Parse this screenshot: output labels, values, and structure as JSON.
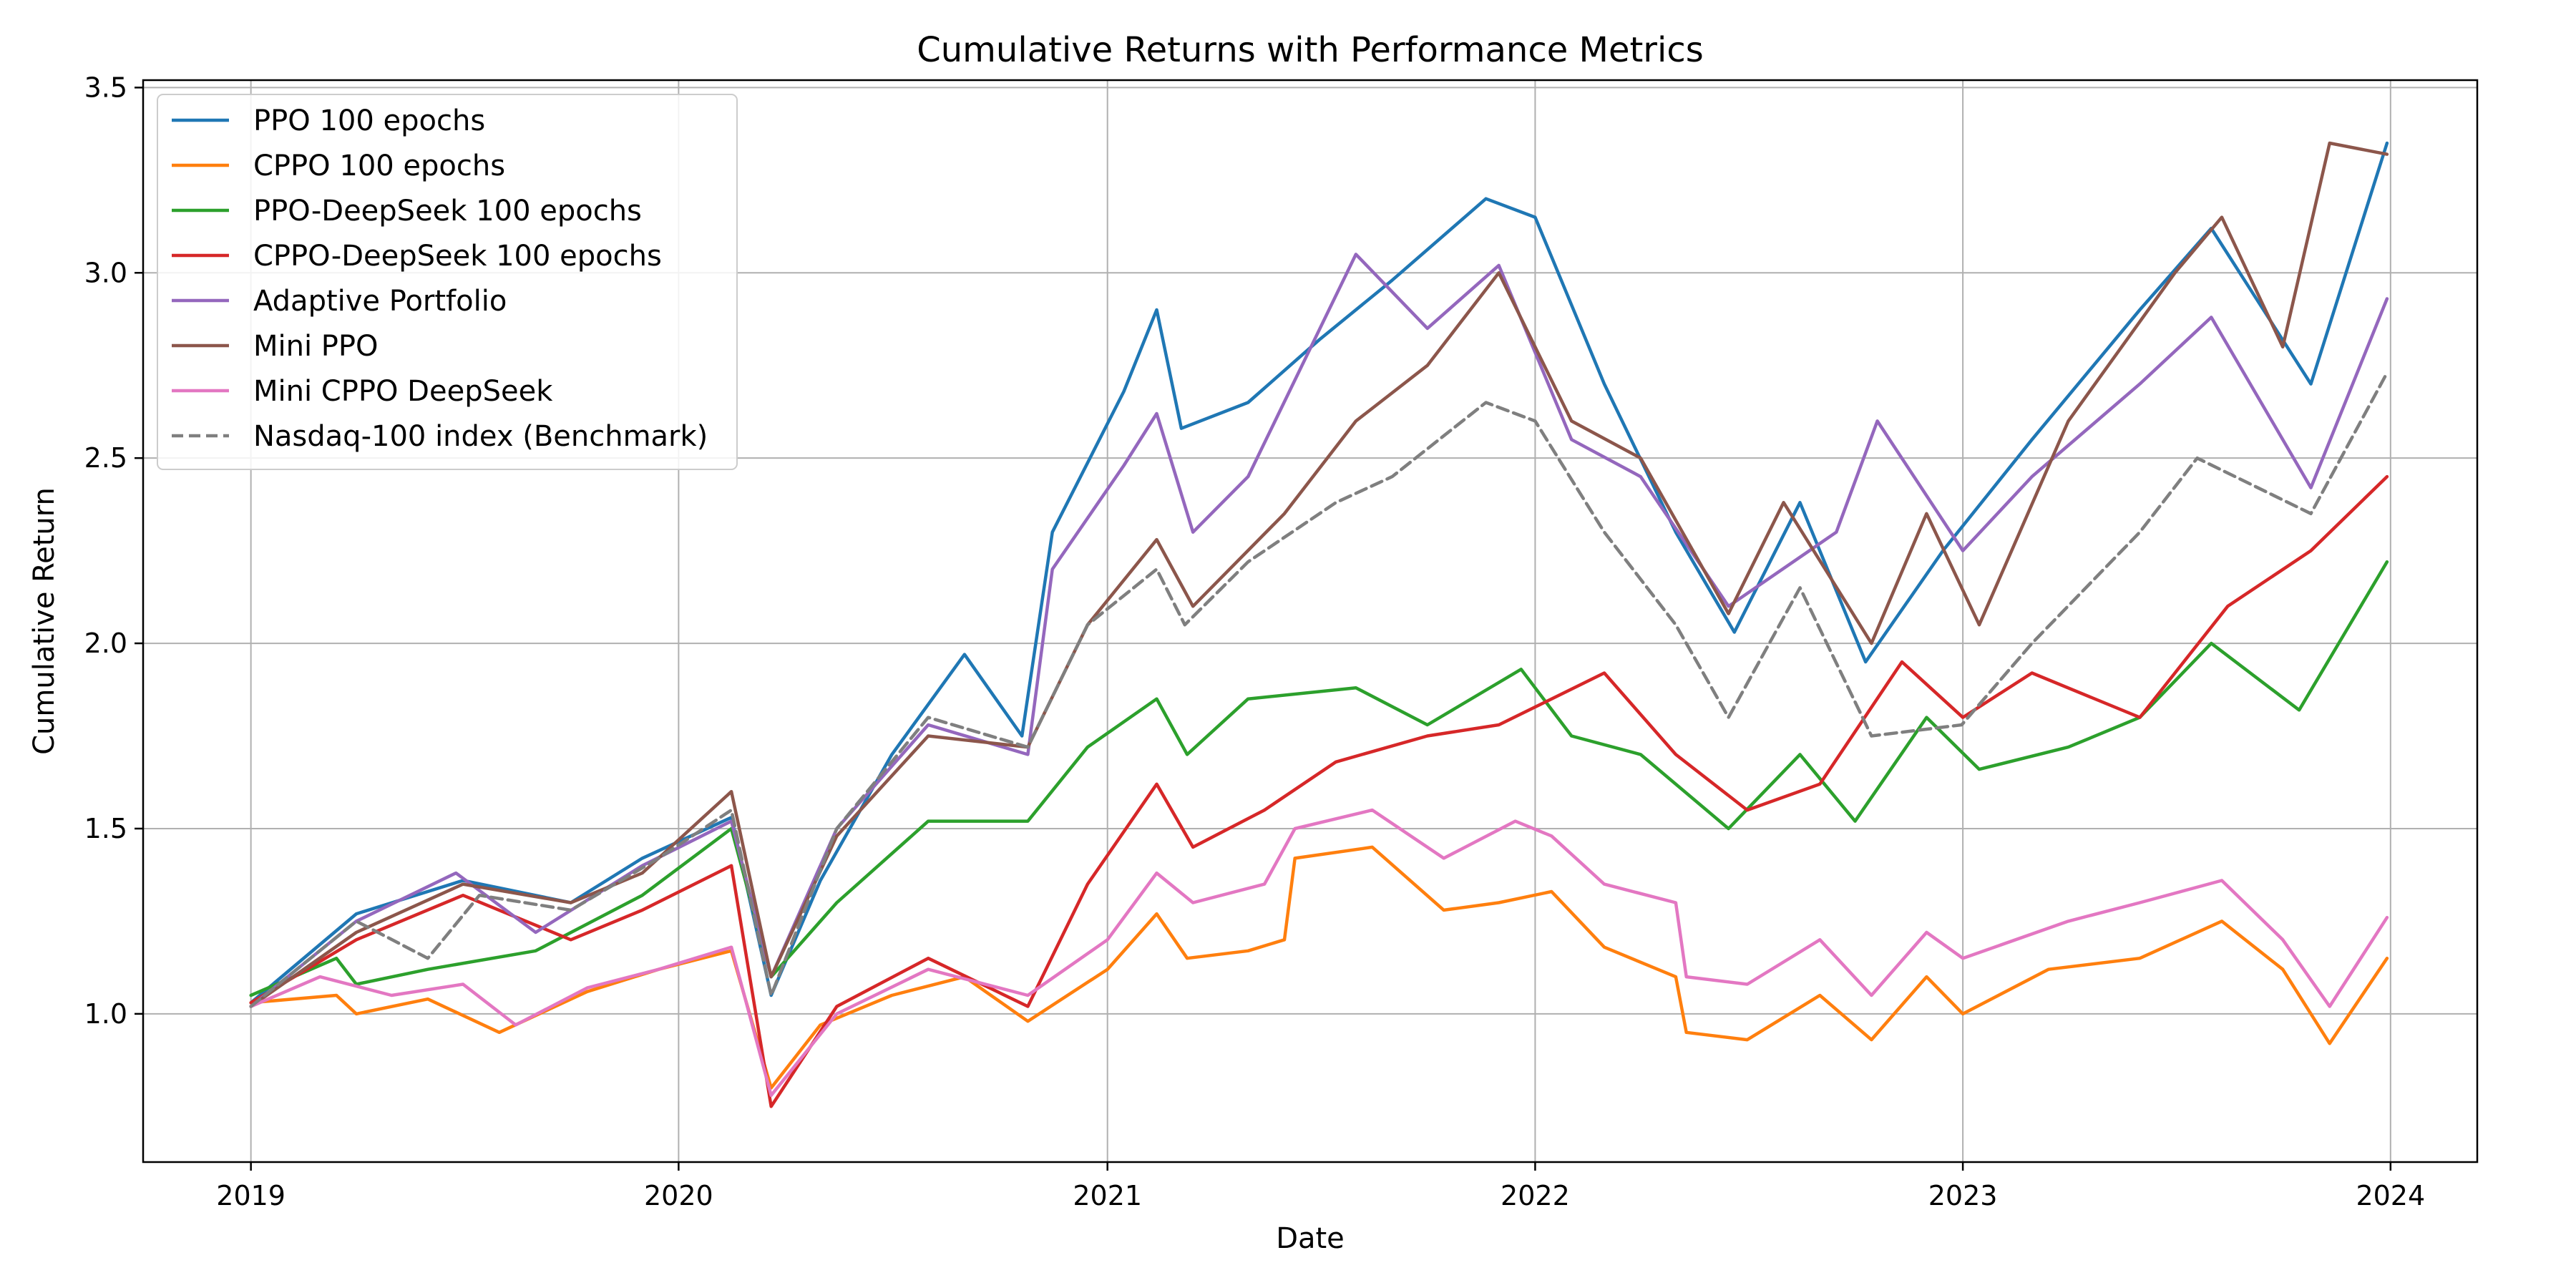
{
  "chart_data": {
    "type": "line",
    "title": "Cumulative Returns with Performance Metrics",
    "xlabel": "Date",
    "ylabel": "Cumulative Return",
    "xlim": [
      "2018-10-01",
      "2024-03-15"
    ],
    "ylim": [
      0.6,
      3.52
    ],
    "x_ticks": [
      "2019-01-01",
      "2020-01-01",
      "2021-01-01",
      "2022-01-01",
      "2023-01-01",
      "2024-01-01"
    ],
    "x_tick_labels": [
      "2019",
      "2020",
      "2021",
      "2022",
      "2023",
      "2024"
    ],
    "y_ticks": [
      1.0,
      1.5,
      2.0,
      2.5,
      3.0,
      3.5
    ],
    "y_tick_labels": [
      "1.0",
      "1.5",
      "2.0",
      "2.5",
      "3.0",
      "3.5"
    ],
    "grid": true,
    "legend_position": "top-left",
    "series": [
      {
        "name": "PPO 100 epochs",
        "color": "#1f77b4",
        "dash": "solid",
        "points": [
          [
            "2019-01-01",
            1.03
          ],
          [
            "2019-04-01",
            1.27
          ],
          [
            "2019-07-01",
            1.36
          ],
          [
            "2019-10-01",
            1.3
          ],
          [
            "2019-12-01",
            1.42
          ],
          [
            "2020-02-15",
            1.53
          ],
          [
            "2020-03-20",
            1.05
          ],
          [
            "2020-05-01",
            1.36
          ],
          [
            "2020-07-01",
            1.7
          ],
          [
            "2020-09-01",
            1.97
          ],
          [
            "2020-10-20",
            1.75
          ],
          [
            "2020-11-15",
            2.3
          ],
          [
            "2021-01-15",
            2.68
          ],
          [
            "2021-02-12",
            2.9
          ],
          [
            "2021-03-05",
            2.58
          ],
          [
            "2021-05-01",
            2.65
          ],
          [
            "2021-07-01",
            2.82
          ],
          [
            "2021-09-01",
            2.98
          ],
          [
            "2021-11-20",
            3.2
          ],
          [
            "2022-01-01",
            3.15
          ],
          [
            "2022-03-01",
            2.7
          ],
          [
            "2022-05-01",
            2.3
          ],
          [
            "2022-06-20",
            2.03
          ],
          [
            "2022-08-15",
            2.38
          ],
          [
            "2022-10-10",
            1.95
          ],
          [
            "2022-12-15",
            2.25
          ],
          [
            "2023-03-01",
            2.55
          ],
          [
            "2023-06-01",
            2.9
          ],
          [
            "2023-08-01",
            3.12
          ],
          [
            "2023-10-25",
            2.7
          ],
          [
            "2023-12-29",
            3.35
          ]
        ]
      },
      {
        "name": "CPPO 100 epochs",
        "color": "#ff7f0e",
        "dash": "solid",
        "points": [
          [
            "2019-01-01",
            1.03
          ],
          [
            "2019-03-15",
            1.05
          ],
          [
            "2019-04-01",
            1.0
          ],
          [
            "2019-06-01",
            1.04
          ],
          [
            "2019-08-01",
            0.95
          ],
          [
            "2019-10-15",
            1.06
          ],
          [
            "2019-12-15",
            1.12
          ],
          [
            "2020-02-15",
            1.17
          ],
          [
            "2020-03-20",
            0.8
          ],
          [
            "2020-05-01",
            0.97
          ],
          [
            "2020-07-01",
            1.05
          ],
          [
            "2020-09-01",
            1.1
          ],
          [
            "2020-10-25",
            0.98
          ],
          [
            "2021-01-01",
            1.12
          ],
          [
            "2021-02-12",
            1.27
          ],
          [
            "2021-03-10",
            1.15
          ],
          [
            "2021-05-01",
            1.17
          ],
          [
            "2021-06-01",
            1.2
          ],
          [
            "2021-06-10",
            1.42
          ],
          [
            "2021-08-15",
            1.45
          ],
          [
            "2021-10-15",
            1.28
          ],
          [
            "2021-12-01",
            1.3
          ],
          [
            "2022-01-15",
            1.33
          ],
          [
            "2022-03-01",
            1.18
          ],
          [
            "2022-05-01",
            1.1
          ],
          [
            "2022-05-10",
            0.95
          ],
          [
            "2022-07-01",
            0.93
          ],
          [
            "2022-09-01",
            1.05
          ],
          [
            "2022-10-15",
            0.93
          ],
          [
            "2022-12-01",
            1.1
          ],
          [
            "2023-01-01",
            1.0
          ],
          [
            "2023-03-15",
            1.12
          ],
          [
            "2023-06-01",
            1.15
          ],
          [
            "2023-08-10",
            1.25
          ],
          [
            "2023-10-01",
            1.12
          ],
          [
            "2023-11-10",
            0.92
          ],
          [
            "2023-12-29",
            1.15
          ]
        ]
      },
      {
        "name": "PPO-DeepSeek 100 epochs",
        "color": "#2ca02c",
        "dash": "solid",
        "points": [
          [
            "2019-01-01",
            1.05
          ],
          [
            "2019-03-15",
            1.15
          ],
          [
            "2019-04-01",
            1.08
          ],
          [
            "2019-06-01",
            1.12
          ],
          [
            "2019-09-01",
            1.17
          ],
          [
            "2019-12-01",
            1.32
          ],
          [
            "2020-02-15",
            1.5
          ],
          [
            "2020-03-20",
            1.1
          ],
          [
            "2020-05-15",
            1.3
          ],
          [
            "2020-08-01",
            1.52
          ],
          [
            "2020-10-25",
            1.52
          ],
          [
            "2020-12-15",
            1.72
          ],
          [
            "2021-02-12",
            1.85
          ],
          [
            "2021-03-10",
            1.7
          ],
          [
            "2021-05-01",
            1.85
          ],
          [
            "2021-08-01",
            1.88
          ],
          [
            "2021-10-01",
            1.78
          ],
          [
            "2021-12-20",
            1.93
          ],
          [
            "2022-02-01",
            1.75
          ],
          [
            "2022-04-01",
            1.7
          ],
          [
            "2022-06-15",
            1.5
          ],
          [
            "2022-08-15",
            1.7
          ],
          [
            "2022-10-01",
            1.52
          ],
          [
            "2022-12-01",
            1.8
          ],
          [
            "2023-01-15",
            1.66
          ],
          [
            "2023-04-01",
            1.72
          ],
          [
            "2023-06-01",
            1.8
          ],
          [
            "2023-08-01",
            2.0
          ],
          [
            "2023-10-15",
            1.82
          ],
          [
            "2023-12-29",
            2.22
          ]
        ]
      },
      {
        "name": "CPPO-DeepSeek 100 epochs",
        "color": "#d62728",
        "dash": "solid",
        "points": [
          [
            "2019-01-01",
            1.03
          ],
          [
            "2019-04-01",
            1.2
          ],
          [
            "2019-07-01",
            1.32
          ],
          [
            "2019-10-01",
            1.2
          ],
          [
            "2019-12-01",
            1.28
          ],
          [
            "2020-02-15",
            1.4
          ],
          [
            "2020-03-20",
            0.75
          ],
          [
            "2020-05-15",
            1.02
          ],
          [
            "2020-08-01",
            1.15
          ],
          [
            "2020-10-25",
            1.02
          ],
          [
            "2020-12-15",
            1.35
          ],
          [
            "2021-02-12",
            1.62
          ],
          [
            "2021-03-15",
            1.45
          ],
          [
            "2021-05-15",
            1.55
          ],
          [
            "2021-07-15",
            1.68
          ],
          [
            "2021-10-01",
            1.75
          ],
          [
            "2021-12-01",
            1.78
          ],
          [
            "2022-03-01",
            1.92
          ],
          [
            "2022-05-01",
            1.7
          ],
          [
            "2022-07-01",
            1.55
          ],
          [
            "2022-09-01",
            1.62
          ],
          [
            "2022-11-10",
            1.95
          ],
          [
            "2023-01-01",
            1.8
          ],
          [
            "2023-03-01",
            1.92
          ],
          [
            "2023-06-01",
            1.8
          ],
          [
            "2023-08-15",
            2.1
          ],
          [
            "2023-10-25",
            2.25
          ],
          [
            "2023-12-29",
            2.45
          ]
        ]
      },
      {
        "name": "Adaptive Portfolio",
        "color": "#9467bd",
        "dash": "solid",
        "points": [
          [
            "2019-01-01",
            1.02
          ],
          [
            "2019-04-01",
            1.25
          ],
          [
            "2019-06-25",
            1.38
          ],
          [
            "2019-09-01",
            1.22
          ],
          [
            "2019-12-01",
            1.4
          ],
          [
            "2020-02-15",
            1.52
          ],
          [
            "2020-03-20",
            1.1
          ],
          [
            "2020-05-15",
            1.5
          ],
          [
            "2020-08-01",
            1.78
          ],
          [
            "2020-10-25",
            1.7
          ],
          [
            "2020-11-15",
            2.2
          ],
          [
            "2021-01-15",
            2.48
          ],
          [
            "2021-02-12",
            2.62
          ],
          [
            "2021-03-15",
            2.3
          ],
          [
            "2021-05-01",
            2.45
          ],
          [
            "2021-08-01",
            3.05
          ],
          [
            "2021-10-01",
            2.85
          ],
          [
            "2021-12-01",
            3.02
          ],
          [
            "2022-02-01",
            2.55
          ],
          [
            "2022-04-01",
            2.45
          ],
          [
            "2022-06-15",
            2.1
          ],
          [
            "2022-09-15",
            2.3
          ],
          [
            "2022-10-20",
            2.6
          ],
          [
            "2023-01-01",
            2.25
          ],
          [
            "2023-03-01",
            2.45
          ],
          [
            "2023-06-01",
            2.7
          ],
          [
            "2023-08-01",
            2.88
          ],
          [
            "2023-10-25",
            2.42
          ],
          [
            "2023-12-29",
            2.93
          ]
        ]
      },
      {
        "name": "Mini PPO",
        "color": "#8c564b",
        "dash": "solid",
        "points": [
          [
            "2019-01-01",
            1.02
          ],
          [
            "2019-04-01",
            1.22
          ],
          [
            "2019-07-01",
            1.35
          ],
          [
            "2019-10-01",
            1.3
          ],
          [
            "2019-12-01",
            1.38
          ],
          [
            "2020-02-15",
            1.6
          ],
          [
            "2020-03-20",
            1.1
          ],
          [
            "2020-05-15",
            1.48
          ],
          [
            "2020-08-01",
            1.75
          ],
          [
            "2020-10-25",
            1.72
          ],
          [
            "2020-12-15",
            2.05
          ],
          [
            "2021-02-12",
            2.28
          ],
          [
            "2021-03-15",
            2.1
          ],
          [
            "2021-06-01",
            2.35
          ],
          [
            "2021-08-01",
            2.6
          ],
          [
            "2021-10-01",
            2.75
          ],
          [
            "2021-12-01",
            3.0
          ],
          [
            "2022-02-01",
            2.6
          ],
          [
            "2022-04-01",
            2.5
          ],
          [
            "2022-06-15",
            2.08
          ],
          [
            "2022-08-01",
            2.38
          ],
          [
            "2022-10-15",
            2.0
          ],
          [
            "2022-12-01",
            2.35
          ],
          [
            "2023-01-15",
            2.05
          ],
          [
            "2023-04-01",
            2.6
          ],
          [
            "2023-07-01",
            3.0
          ],
          [
            "2023-08-10",
            3.15
          ],
          [
            "2023-10-01",
            2.8
          ],
          [
            "2023-11-10",
            3.35
          ],
          [
            "2023-12-29",
            3.32
          ]
        ]
      },
      {
        "name": "Mini CPPO DeepSeek",
        "color": "#e377c2",
        "dash": "solid",
        "points": [
          [
            "2019-01-01",
            1.02
          ],
          [
            "2019-03-01",
            1.1
          ],
          [
            "2019-05-01",
            1.05
          ],
          [
            "2019-07-01",
            1.08
          ],
          [
            "2019-08-15",
            0.97
          ],
          [
            "2019-10-15",
            1.07
          ],
          [
            "2019-12-15",
            1.12
          ],
          [
            "2020-02-15",
            1.18
          ],
          [
            "2020-03-20",
            0.78
          ],
          [
            "2020-05-15",
            1.0
          ],
          [
            "2020-08-01",
            1.12
          ],
          [
            "2020-10-25",
            1.05
          ],
          [
            "2021-01-01",
            1.2
          ],
          [
            "2021-02-12",
            1.38
          ],
          [
            "2021-03-15",
            1.3
          ],
          [
            "2021-05-15",
            1.35
          ],
          [
            "2021-06-10",
            1.5
          ],
          [
            "2021-08-15",
            1.55
          ],
          [
            "2021-10-15",
            1.42
          ],
          [
            "2021-12-15",
            1.52
          ],
          [
            "2022-01-15",
            1.48
          ],
          [
            "2022-03-01",
            1.35
          ],
          [
            "2022-05-01",
            1.3
          ],
          [
            "2022-05-10",
            1.1
          ],
          [
            "2022-07-01",
            1.08
          ],
          [
            "2022-09-01",
            1.2
          ],
          [
            "2022-10-15",
            1.05
          ],
          [
            "2022-12-01",
            1.22
          ],
          [
            "2023-01-01",
            1.15
          ],
          [
            "2023-04-01",
            1.25
          ],
          [
            "2023-06-01",
            1.3
          ],
          [
            "2023-08-10",
            1.36
          ],
          [
            "2023-10-01",
            1.2
          ],
          [
            "2023-11-10",
            1.02
          ],
          [
            "2023-12-29",
            1.26
          ]
        ]
      },
      {
        "name": "Nasdaq-100 index (Benchmark)",
        "color": "#7f7f7f",
        "dash": "dashed",
        "points": [
          [
            "2019-01-01",
            1.02
          ],
          [
            "2019-04-01",
            1.25
          ],
          [
            "2019-06-01",
            1.15
          ],
          [
            "2019-07-15",
            1.32
          ],
          [
            "2019-10-01",
            1.28
          ],
          [
            "2019-12-15",
            1.42
          ],
          [
            "2020-02-15",
            1.55
          ],
          [
            "2020-03-20",
            1.05
          ],
          [
            "2020-05-15",
            1.5
          ],
          [
            "2020-08-01",
            1.8
          ],
          [
            "2020-10-25",
            1.72
          ],
          [
            "2020-12-15",
            2.05
          ],
          [
            "2021-02-12",
            2.2
          ],
          [
            "2021-03-08",
            2.05
          ],
          [
            "2021-05-01",
            2.22
          ],
          [
            "2021-07-15",
            2.38
          ],
          [
            "2021-09-01",
            2.45
          ],
          [
            "2021-11-20",
            2.65
          ],
          [
            "2022-01-01",
            2.6
          ],
          [
            "2022-03-01",
            2.3
          ],
          [
            "2022-05-01",
            2.05
          ],
          [
            "2022-06-15",
            1.8
          ],
          [
            "2022-08-15",
            2.15
          ],
          [
            "2022-10-15",
            1.75
          ],
          [
            "2022-12-31",
            1.78
          ],
          [
            "2023-03-01",
            2.0
          ],
          [
            "2023-06-01",
            2.3
          ],
          [
            "2023-07-20",
            2.5
          ],
          [
            "2023-10-25",
            2.35
          ],
          [
            "2023-12-29",
            2.73
          ]
        ]
      }
    ]
  }
}
